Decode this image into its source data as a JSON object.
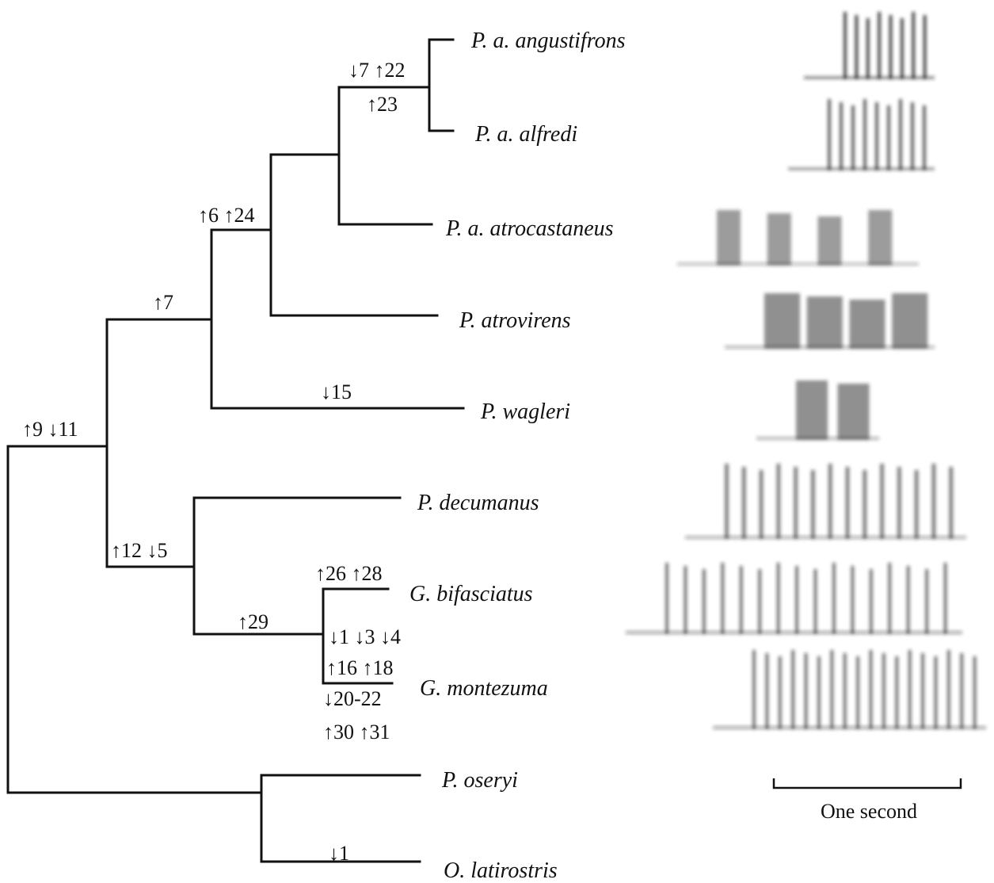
{
  "taxa": [
    "P. a. angustifrons",
    "P. a. alfredi",
    "P. a. atrocastaneus",
    "P. atrovirens",
    "P. wagleri",
    "P. decumanus",
    "G. bifasciatus",
    "G. montezuma",
    "P. oseryi",
    "O. latirostris"
  ],
  "annotations": [
    "↓7 ↑22",
    "↑23",
    "↑6 ↑24",
    "↑7",
    "↓15",
    "↑9 ↓11",
    "↑12 ↓5",
    "↑26 ↑28",
    "↑29",
    "↓1 ↓3 ↓4",
    "↑16 ↑18",
    "↓20-22",
    "↑30 ↑31",
    "↓1"
  ],
  "scale_bar": {
    "label": "One second"
  }
}
